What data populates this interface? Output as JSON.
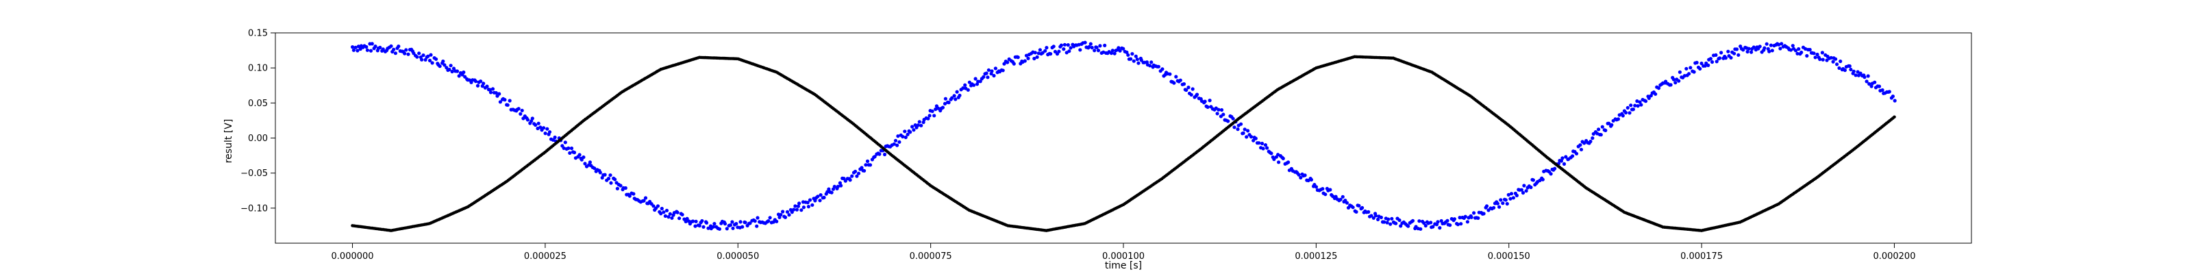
{
  "chart_data": {
    "type": "scatter",
    "xlabel": "time [s]",
    "ylabel": "result [V]",
    "xlim": [
      -1e-05,
      0.00021
    ],
    "ylim": [
      -0.15,
      0.15
    ],
    "grid": false,
    "x_ticks": [
      0.0,
      2.5e-05,
      5e-05,
      7.5e-05,
      0.0001,
      0.000125,
      0.00015,
      0.000175,
      0.0002
    ],
    "x_tick_labels": [
      "0.000000",
      "0.000025",
      "0.000050",
      "0.000075",
      "0.000100",
      "0.000125",
      "0.000150",
      "0.000175",
      "0.000200"
    ],
    "y_ticks": [
      -0.1,
      -0.05,
      0.0,
      0.05,
      0.1,
      0.15
    ],
    "y_tick_labels": [
      "−0.10",
      "−0.05",
      "0.00",
      "0.05",
      "0.10",
      "0.15"
    ],
    "series": [
      {
        "color": "#0000ff",
        "marker": "dot",
        "x": [
          0.0,
          5e-06,
          1e-05,
          1.5e-05,
          2e-05,
          2.5e-05,
          3e-05,
          3.5e-05,
          4e-05,
          4.5e-05,
          5e-05,
          5.5e-05,
          6e-05,
          6.5e-05,
          7e-05,
          7.5e-05,
          8e-05,
          8.5e-05,
          9e-05,
          9.5e-05,
          0.0001,
          0.000105,
          0.00011,
          0.000115,
          0.00012,
          0.000125,
          0.00013,
          0.000135,
          0.00014,
          0.000145,
          0.00015,
          0.000155,
          0.00016,
          0.000165,
          0.00017,
          0.000175,
          0.00018,
          0.000185,
          0.00019,
          0.000195,
          0.0002
        ],
        "y": [
          0.13,
          0.128,
          0.115,
          0.088,
          0.051,
          0.01,
          -0.032,
          -0.071,
          -0.103,
          -0.122,
          -0.126,
          -0.114,
          -0.089,
          -0.053,
          -0.01,
          0.034,
          0.075,
          0.106,
          0.124,
          0.131,
          0.122,
          0.095,
          0.058,
          0.016,
          -0.028,
          -0.068,
          -0.1,
          -0.12,
          -0.126,
          -0.114,
          -0.087,
          -0.05,
          -0.007,
          0.036,
          0.075,
          0.106,
          0.125,
          0.13,
          0.12,
          0.094,
          0.058
        ]
      },
      {
        "color": "#000000",
        "marker": "dot",
        "x": [
          0.0,
          5e-06,
          1e-05,
          1.5e-05,
          2e-05,
          2.5e-05,
          3e-05,
          3.5e-05,
          4e-05,
          4.5e-05,
          5e-05,
          5.5e-05,
          6e-05,
          6.5e-05,
          7e-05,
          7.5e-05,
          8e-05,
          8.5e-05,
          9e-05,
          9.5e-05,
          0.0001,
          0.000105,
          0.00011,
          0.000115,
          0.00012,
          0.000125,
          0.00013,
          0.000135,
          0.00014,
          0.000145,
          0.00015,
          0.000155,
          0.00016,
          0.000165,
          0.00017,
          0.000175,
          0.00018,
          0.000185,
          0.00019,
          0.000195,
          0.0002
        ],
        "y": [
          -0.125,
          -0.132,
          -0.122,
          -0.098,
          -0.062,
          -0.02,
          0.025,
          0.066,
          0.098,
          0.115,
          0.113,
          0.094,
          0.062,
          0.02,
          -0.025,
          -0.068,
          -0.103,
          -0.125,
          -0.132,
          -0.122,
          -0.095,
          -0.058,
          -0.016,
          0.028,
          0.069,
          0.1,
          0.116,
          0.114,
          0.094,
          0.06,
          0.018,
          -0.028,
          -0.071,
          -0.106,
          -0.127,
          -0.132,
          -0.12,
          -0.094,
          -0.056,
          -0.014,
          0.03
        ]
      }
    ]
  }
}
